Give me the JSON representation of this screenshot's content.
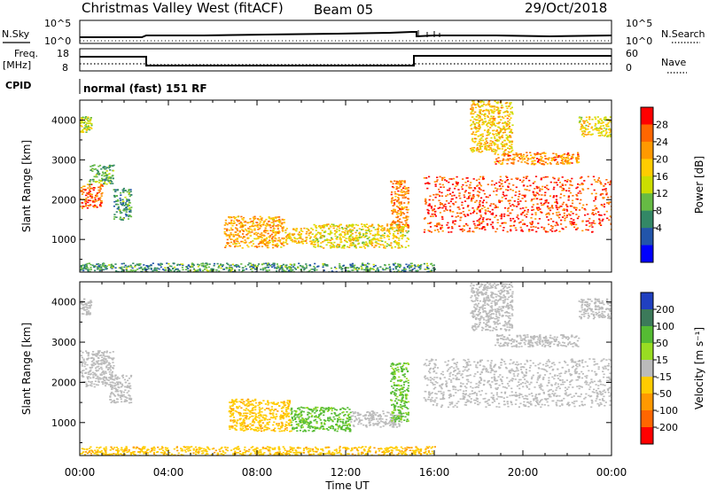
{
  "header": {
    "station": "Christmas Valley West (fitACF)",
    "beam": "Beam 05",
    "date": "29/Oct/2018"
  },
  "noise_panel": {
    "left_label": "N.Sky",
    "left_ticks": [
      "10^5",
      "10^0"
    ],
    "right_label": "N.Search",
    "right_ticks": [
      "10^5",
      "10^0"
    ]
  },
  "freq_panel": {
    "left_label_1": "Freq.",
    "left_label_2": "[MHz]",
    "left_ticks": [
      "18",
      "8"
    ],
    "right_label": "Nave",
    "right_ticks": [
      "60",
      "0"
    ]
  },
  "cpid": {
    "label": "CPID",
    "mode": "normal (fast) 151 RF"
  },
  "chart_data": [
    {
      "type": "heatmap",
      "name": "Power",
      "ylabel": "Slant Range [km]",
      "xlabel": "",
      "xlim": [
        "00:00",
        "24:00"
      ],
      "ylim": [
        180,
        4500
      ],
      "yticks": [
        1000,
        2000,
        3000,
        4000
      ],
      "colorbar_label": "Power [dB]",
      "colorbar_ticks": [
        "28",
        "24",
        "20",
        "16",
        "12",
        "8",
        "4"
      ],
      "colorbar_colors": [
        "#ff0000",
        "#ff6600",
        "#ff9900",
        "#ffcc00",
        "#ccdd00",
        "#66bb44",
        "#338866",
        "#2255aa",
        "#0000ff"
      ],
      "regions": [
        {
          "t0": 0.0,
          "t1": 1.0,
          "r0": 1800,
          "r1": 2400,
          "value": 26
        },
        {
          "t0": 0.4,
          "t1": 1.5,
          "r0": 2400,
          "r1": 2900,
          "value": 12
        },
        {
          "t0": 0.0,
          "t1": 0.5,
          "r0": 3700,
          "r1": 4100,
          "value": 16
        },
        {
          "t0": 1.5,
          "t1": 2.3,
          "r0": 1500,
          "r1": 2300,
          "value": 10
        },
        {
          "t0": 6.5,
          "t1": 9.2,
          "r0": 800,
          "r1": 1600,
          "value": 22
        },
        {
          "t0": 9.2,
          "t1": 10.5,
          "r0": 900,
          "r1": 1300,
          "value": 20
        },
        {
          "t0": 10.5,
          "t1": 14.8,
          "r0": 800,
          "r1": 1400,
          "value": 18
        },
        {
          "t0": 14.0,
          "t1": 14.8,
          "r0": 1300,
          "r1": 2500,
          "value": 24
        },
        {
          "t0": 15.5,
          "t1": 24.0,
          "r0": 1200,
          "r1": 2600,
          "value": 28
        },
        {
          "t0": 18.7,
          "t1": 22.5,
          "r0": 2900,
          "r1": 3200,
          "value": 24
        },
        {
          "t0": 17.6,
          "t1": 19.5,
          "r0": 3200,
          "r1": 4500,
          "value": 20
        },
        {
          "t0": 22.5,
          "t1": 24.0,
          "r0": 3600,
          "r1": 4100,
          "value": 18
        },
        {
          "t0": 0.0,
          "t1": 16.0,
          "r0": 180,
          "r1": 420,
          "value": 10
        }
      ]
    },
    {
      "type": "heatmap",
      "name": "Velocity",
      "ylabel": "Slant Range [km]",
      "xlabel": "Time UT",
      "xlim": [
        "00:00",
        "24:00"
      ],
      "ylim": [
        180,
        4500
      ],
      "yticks": [
        1000,
        2000,
        3000,
        4000
      ],
      "xticks": [
        "00:00",
        "04:00",
        "08:00",
        "12:00",
        "16:00",
        "20:00",
        "00:00"
      ],
      "colorbar_label": "Velocity [m s⁻¹]",
      "colorbar_ticks": [
        "200",
        "100",
        "50",
        "15",
        "-15",
        "-50",
        "-100",
        "-200"
      ],
      "colorbar_colors": [
        "#2040c0",
        "#3c7a5a",
        "#55bb33",
        "#99dd22",
        "#bbbbbb",
        "#ffcc00",
        "#ff9900",
        "#ff6600",
        "#ff0000"
      ],
      "regions": [
        {
          "t0": 0.0,
          "t1": 1.5,
          "r0": 1900,
          "r1": 2800,
          "value": 0
        },
        {
          "t0": 1.3,
          "t1": 2.3,
          "r0": 1500,
          "r1": 2200,
          "value": 0
        },
        {
          "t0": 0.0,
          "t1": 0.5,
          "r0": 3700,
          "r1": 4100,
          "value": 0
        },
        {
          "t0": 6.7,
          "t1": 9.5,
          "r0": 800,
          "r1": 1600,
          "value": -40
        },
        {
          "t0": 9.5,
          "t1": 12.2,
          "r0": 800,
          "r1": 1400,
          "value": 40
        },
        {
          "t0": 12.2,
          "t1": 14.5,
          "r0": 900,
          "r1": 1300,
          "value": 0
        },
        {
          "t0": 14.0,
          "t1": 14.8,
          "r0": 1000,
          "r1": 2500,
          "value": 40
        },
        {
          "t0": 15.5,
          "t1": 24.0,
          "r0": 1400,
          "r1": 2600,
          "value": 0
        },
        {
          "t0": 18.7,
          "t1": 22.5,
          "r0": 2900,
          "r1": 3200,
          "value": 0
        },
        {
          "t0": 17.6,
          "t1": 19.5,
          "r0": 3300,
          "r1": 4500,
          "value": 0
        },
        {
          "t0": 22.5,
          "t1": 24.0,
          "r0": 3600,
          "r1": 4100,
          "value": 0
        },
        {
          "t0": 0.0,
          "t1": 16.0,
          "r0": 180,
          "r1": 420,
          "value": -40
        }
      ]
    }
  ]
}
